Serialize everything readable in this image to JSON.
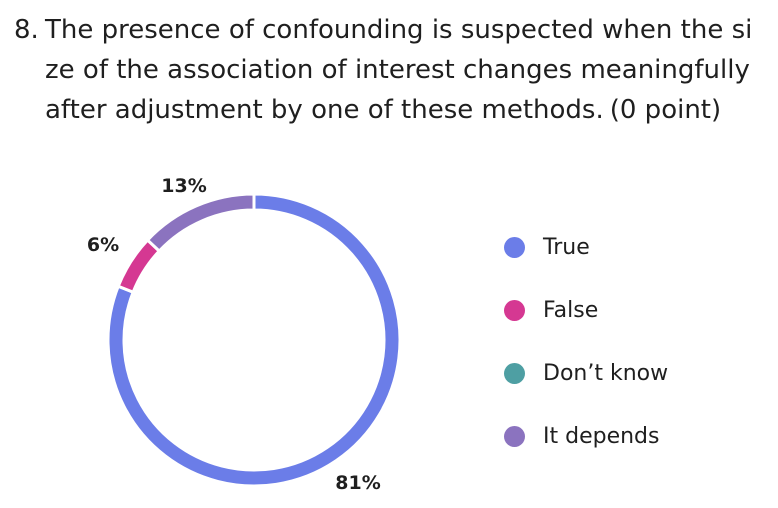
{
  "question": {
    "number": "8.",
    "text": "The presence of confounding is suspected when the size of the association of interest changes meaningfully after adjustment by one of these methods.",
    "points": "(0 point)"
  },
  "chart_data": {
    "type": "pie",
    "style": "donut",
    "categories": [
      "True",
      "False",
      "Don’t know",
      "It depends"
    ],
    "values": [
      81,
      6,
      0,
      13
    ],
    "value_labels": [
      "81%",
      "6%",
      "",
      "13%"
    ],
    "colors": [
      "#6b7de8",
      "#d53892",
      "#4e9fa3",
      "#8b73bf"
    ],
    "legend_placement": "right"
  }
}
